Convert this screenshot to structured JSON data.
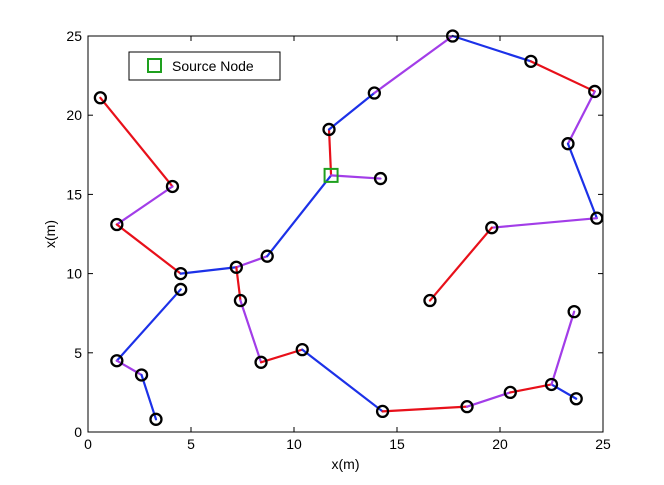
{
  "chart_data": {
    "type": "scatter",
    "title": "",
    "xlabel": "x(m)",
    "ylabel": "x(m)",
    "xlim": [
      0,
      25
    ],
    "ylim": [
      0,
      25
    ],
    "xticks": [
      0,
      5,
      10,
      15,
      20,
      25
    ],
    "yticks": [
      0,
      5,
      10,
      15,
      20,
      25
    ],
    "grid": false,
    "legend": {
      "placement": "top-left",
      "entries": [
        "Source Node"
      ]
    },
    "colors": {
      "red": "#e8101a",
      "blue": "#1c31e8",
      "purple": "#a23de8",
      "source": "#1ea01e",
      "node": "#000000"
    },
    "source": {
      "x": 11.8,
      "y": 16.2,
      "label": "Source Node"
    },
    "nodes": [
      {
        "x": 0.6,
        "y": 21.1
      },
      {
        "x": 4.1,
        "y": 15.5
      },
      {
        "x": 1.4,
        "y": 13.1
      },
      {
        "x": 4.5,
        "y": 10.0
      },
      {
        "x": 4.5,
        "y": 9.0
      },
      {
        "x": 1.4,
        "y": 4.5
      },
      {
        "x": 2.6,
        "y": 3.6
      },
      {
        "x": 3.3,
        "y": 0.8
      },
      {
        "x": 7.2,
        "y": 10.4
      },
      {
        "x": 8.7,
        "y": 11.1
      },
      {
        "x": 7.4,
        "y": 8.3
      },
      {
        "x": 8.4,
        "y": 4.4
      },
      {
        "x": 10.4,
        "y": 5.2
      },
      {
        "x": 14.3,
        "y": 1.3
      },
      {
        "x": 18.4,
        "y": 1.6
      },
      {
        "x": 20.5,
        "y": 2.5
      },
      {
        "x": 22.5,
        "y": 3.0
      },
      {
        "x": 23.7,
        "y": 2.1
      },
      {
        "x": 23.6,
        "y": 7.6
      },
      {
        "x": 11.7,
        "y": 19.1
      },
      {
        "x": 13.9,
        "y": 21.4
      },
      {
        "x": 14.2,
        "y": 16.0
      },
      {
        "x": 17.7,
        "y": 25.0
      },
      {
        "x": 21.5,
        "y": 23.4
      },
      {
        "x": 24.6,
        "y": 21.5
      },
      {
        "x": 23.3,
        "y": 18.2
      },
      {
        "x": 24.7,
        "y": 13.5
      },
      {
        "x": 19.6,
        "y": 12.9
      },
      {
        "x": 16.6,
        "y": 8.3
      }
    ],
    "edges": [
      {
        "from": [
          0.6,
          21.1
        ],
        "to": [
          4.1,
          15.5
        ],
        "color": "red"
      },
      {
        "from": [
          4.1,
          15.5
        ],
        "to": [
          1.4,
          13.1
        ],
        "color": "purple"
      },
      {
        "from": [
          1.4,
          13.1
        ],
        "to": [
          4.5,
          10.0
        ],
        "color": "red"
      },
      {
        "from": [
          4.5,
          10.0
        ],
        "to": [
          7.2,
          10.4
        ],
        "color": "blue"
      },
      {
        "from": [
          4.5,
          9.0
        ],
        "to": [
          1.4,
          4.5
        ],
        "color": "blue"
      },
      {
        "from": [
          1.4,
          4.5
        ],
        "to": [
          2.6,
          3.6
        ],
        "color": "purple"
      },
      {
        "from": [
          2.6,
          3.6
        ],
        "to": [
          3.3,
          0.8
        ],
        "color": "blue"
      },
      {
        "from": [
          7.2,
          10.4
        ],
        "to": [
          8.7,
          11.1
        ],
        "color": "purple"
      },
      {
        "from": [
          8.7,
          11.1
        ],
        "to": [
          11.8,
          16.2
        ],
        "color": "blue"
      },
      {
        "from": [
          7.2,
          10.4
        ],
        "to": [
          7.4,
          8.3
        ],
        "color": "red"
      },
      {
        "from": [
          7.4,
          8.3
        ],
        "to": [
          8.4,
          4.4
        ],
        "color": "purple"
      },
      {
        "from": [
          8.4,
          4.4
        ],
        "to": [
          10.4,
          5.2
        ],
        "color": "red"
      },
      {
        "from": [
          10.4,
          5.2
        ],
        "to": [
          14.3,
          1.3
        ],
        "color": "blue"
      },
      {
        "from": [
          14.3,
          1.3
        ],
        "to": [
          18.4,
          1.6
        ],
        "color": "red"
      },
      {
        "from": [
          18.4,
          1.6
        ],
        "to": [
          20.5,
          2.5
        ],
        "color": "purple"
      },
      {
        "from": [
          20.5,
          2.5
        ],
        "to": [
          22.5,
          3.0
        ],
        "color": "red"
      },
      {
        "from": [
          22.5,
          3.0
        ],
        "to": [
          23.7,
          2.1
        ],
        "color": "blue"
      },
      {
        "from": [
          22.5,
          3.0
        ],
        "to": [
          23.6,
          7.6
        ],
        "color": "purple"
      },
      {
        "from": [
          11.8,
          16.2
        ],
        "to": [
          11.7,
          19.1
        ],
        "color": "red"
      },
      {
        "from": [
          11.8,
          16.2
        ],
        "to": [
          14.2,
          16.0
        ],
        "color": "purple"
      },
      {
        "from": [
          11.7,
          19.1
        ],
        "to": [
          13.9,
          21.4
        ],
        "color": "blue"
      },
      {
        "from": [
          13.9,
          21.4
        ],
        "to": [
          17.7,
          25.0
        ],
        "color": "purple"
      },
      {
        "from": [
          17.7,
          25.0
        ],
        "to": [
          21.5,
          23.4
        ],
        "color": "blue"
      },
      {
        "from": [
          21.5,
          23.4
        ],
        "to": [
          24.6,
          21.5
        ],
        "color": "red"
      },
      {
        "from": [
          24.6,
          21.5
        ],
        "to": [
          23.3,
          18.2
        ],
        "color": "purple"
      },
      {
        "from": [
          23.3,
          18.2
        ],
        "to": [
          24.7,
          13.5
        ],
        "color": "blue"
      },
      {
        "from": [
          24.7,
          13.5
        ],
        "to": [
          19.6,
          12.9
        ],
        "color": "purple"
      },
      {
        "from": [
          19.6,
          12.9
        ],
        "to": [
          16.6,
          8.3
        ],
        "color": "red"
      }
    ]
  }
}
